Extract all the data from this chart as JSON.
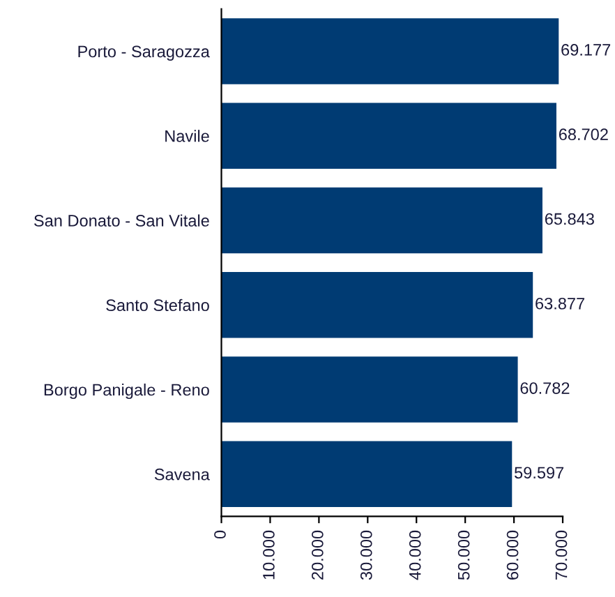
{
  "chart_data": {
    "type": "bar",
    "orientation": "horizontal",
    "categories": [
      "Porto - Saragozza",
      "Navile",
      "San Donato - San Vitale",
      "Santo Stefano",
      "Borgo Panigale - Reno",
      "Savena"
    ],
    "values": [
      69177,
      68702,
      65843,
      63877,
      60782,
      59597
    ],
    "value_labels": [
      "69.177",
      "68.702",
      "65.843",
      "63.877",
      "60.782",
      "59.597"
    ],
    "color": "#003b73",
    "xlim": [
      0,
      70000
    ],
    "xticks": [
      0,
      {
        "value": 10000,
        "label": "10.000"
      },
      {
        "value": 20000,
        "label": "20.000"
      },
      {
        "value": 30000,
        "label": "30.000"
      },
      {
        "value": 40000,
        "label": "40.000"
      },
      {
        "value": 50000,
        "label": "50.000"
      },
      {
        "value": 60000,
        "label": "60.000"
      },
      {
        "value": 70000,
        "label": "70.000"
      }
    ],
    "grid": false,
    "legend": false
  }
}
